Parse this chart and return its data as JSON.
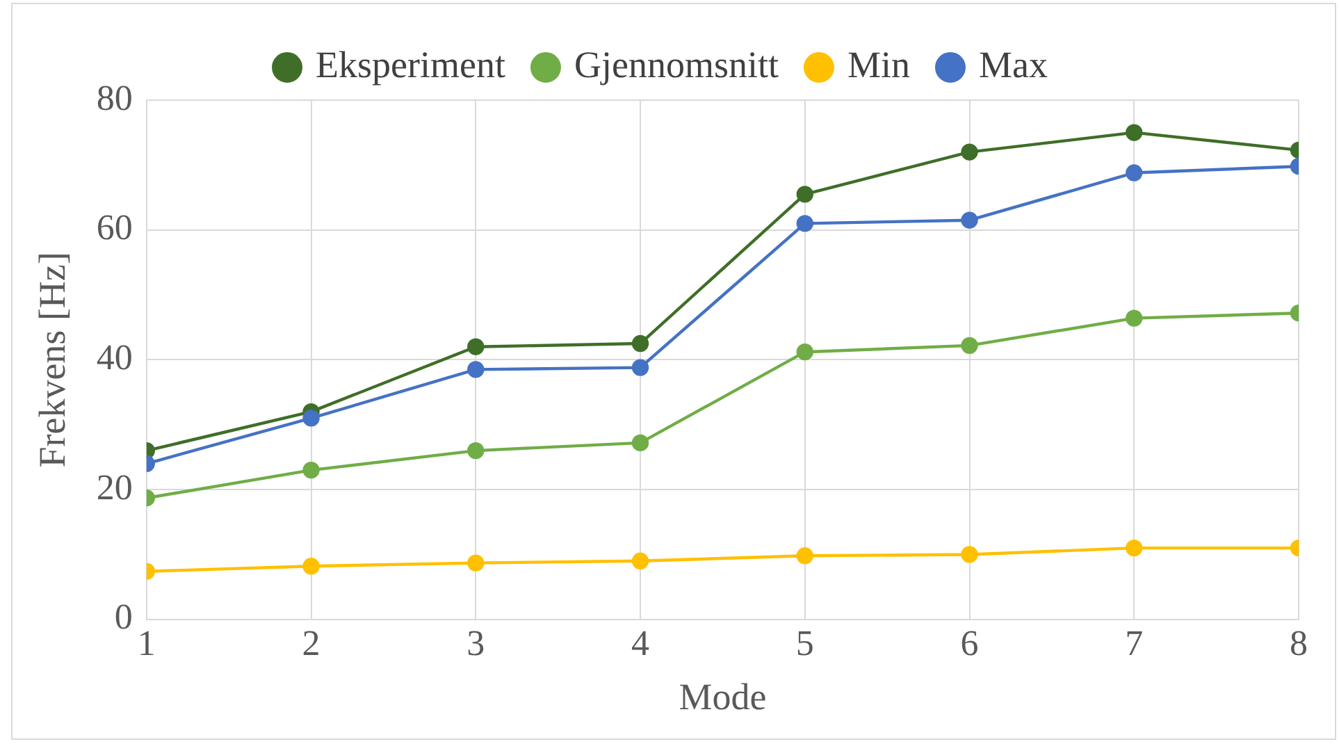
{
  "chart_data": {
    "type": "line",
    "xlabel": "Mode",
    "ylabel": "Frekvens [Hz]",
    "x": [
      1,
      2,
      3,
      4,
      5,
      6,
      7,
      8
    ],
    "series": [
      {
        "name": "Eksperiment",
        "color": "#3f6e28",
        "values": [
          26,
          32,
          42,
          42.5,
          65.5,
          72,
          75,
          72.3
        ]
      },
      {
        "name": "Gjennomsnitt",
        "color": "#70ad47",
        "values": [
          18.7,
          23,
          26,
          27.2,
          41.2,
          42.2,
          46.4,
          47.2
        ]
      },
      {
        "name": "Min",
        "color": "#ffc000",
        "values": [
          7.4,
          8.2,
          8.7,
          9,
          9.8,
          10,
          11,
          11
        ]
      },
      {
        "name": "Max",
        "color": "#4472c4",
        "values": [
          24,
          31,
          38.5,
          38.8,
          61,
          61.5,
          68.8,
          69.8
        ]
      }
    ],
    "xlim": [
      1,
      8
    ],
    "xticks": [
      1,
      2,
      3,
      4,
      5,
      6,
      7,
      8
    ],
    "ylim": [
      0,
      80
    ],
    "yticks": [
      0,
      20,
      40,
      60,
      80
    ],
    "grid": true,
    "legend": "top",
    "marker": "circle",
    "line_style": "solid"
  }
}
